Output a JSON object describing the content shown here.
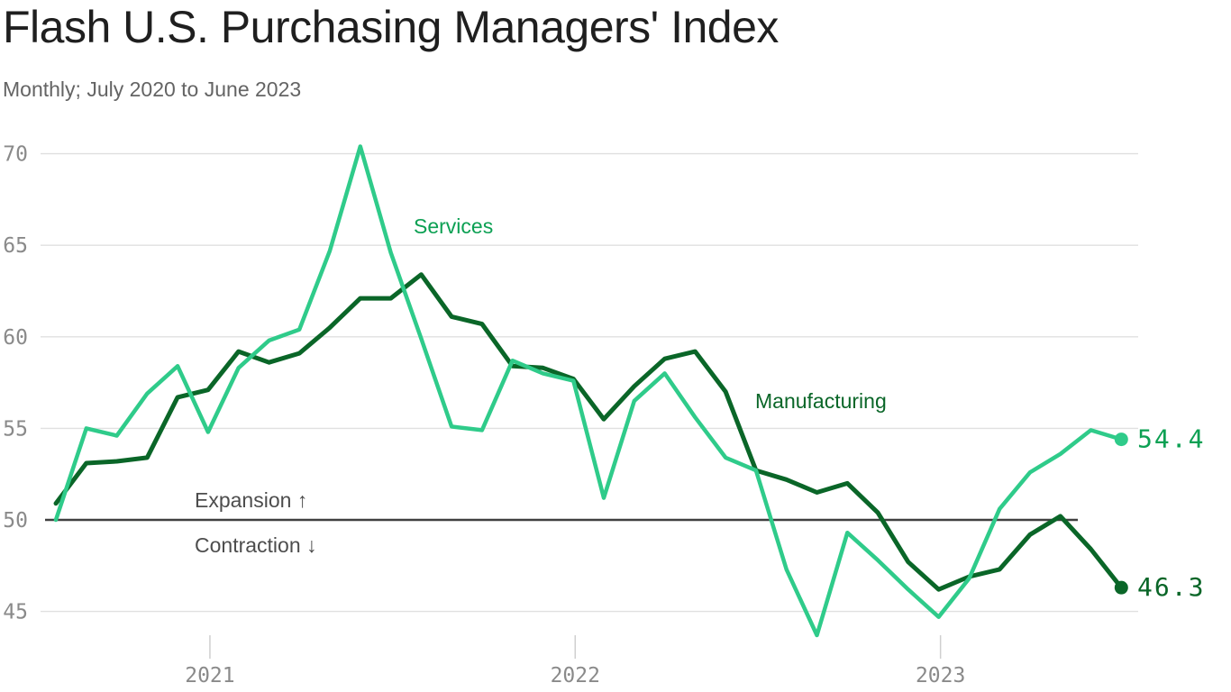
{
  "header": {
    "title": "Flash U.S. Purchasing Managers' Index",
    "subtitle": "Monthly; July 2020 to June 2023"
  },
  "chart_data": {
    "type": "line",
    "title": "Flash U.S. Purchasing Managers' Index",
    "subtitle": "Monthly; July 2020 to June 2023",
    "x": [
      "Jul 2020",
      "Aug 2020",
      "Sep 2020",
      "Oct 2020",
      "Nov 2020",
      "Dec 2020",
      "Jan 2021",
      "Feb 2021",
      "Mar 2021",
      "Apr 2021",
      "May 2021",
      "Jun 2021",
      "Jul 2021",
      "Aug 2021",
      "Sep 2021",
      "Oct 2021",
      "Nov 2021",
      "Dec 2021",
      "Jan 2022",
      "Feb 2022",
      "Mar 2022",
      "Apr 2022",
      "May 2022",
      "Jun 2022",
      "Jul 2022",
      "Aug 2022",
      "Sep 2022",
      "Oct 2022",
      "Nov 2022",
      "Dec 2022",
      "Jan 2023",
      "Feb 2023",
      "Mar 2023",
      "Apr 2023",
      "May 2023",
      "Jun 2023"
    ],
    "x_ticks": [
      "2021",
      "2022",
      "2023"
    ],
    "y_ticks": [
      45,
      50,
      55,
      60,
      65,
      70
    ],
    "ylim": [
      43.5,
      71
    ],
    "grid": true,
    "legend_position": "inline-annotations",
    "baseline": {
      "value": 50,
      "above_label": "Expansion ↑",
      "below_label": "Contraction ↓"
    },
    "series": [
      {
        "name": "Services",
        "line_color": "#2FCB8A",
        "text_color": "#0CA053",
        "end_label": "54.4",
        "values": [
          50.0,
          55.0,
          54.6,
          56.9,
          58.4,
          54.8,
          58.3,
          59.8,
          60.4,
          64.7,
          70.4,
          64.6,
          59.9,
          55.1,
          54.9,
          58.7,
          58.0,
          57.6,
          51.2,
          56.5,
          58.0,
          55.6,
          53.4,
          52.7,
          47.3,
          43.7,
          49.3,
          47.8,
          46.2,
          44.7,
          46.8,
          50.6,
          52.6,
          53.6,
          54.9,
          54.4
        ]
      },
      {
        "name": "Manufacturing",
        "line_color": "#0A6628",
        "text_color": "#0A6628",
        "end_label": "46.3",
        "values": [
          50.9,
          53.1,
          53.2,
          53.4,
          56.7,
          57.1,
          59.2,
          58.6,
          59.1,
          60.5,
          62.1,
          62.1,
          63.4,
          61.1,
          60.7,
          58.4,
          58.3,
          57.7,
          55.5,
          57.3,
          58.8,
          59.2,
          57.0,
          52.7,
          52.2,
          51.5,
          52.0,
          50.4,
          47.7,
          46.2,
          46.9,
          47.3,
          49.2,
          50.2,
          48.4,
          46.3
        ]
      }
    ],
    "style": {
      "background": "#FFFFFF",
      "grid_color": "#E0E0E0",
      "axis_text_color": "#8A8A8A",
      "tick_color": "#CFCFCF",
      "baseline_color": "#404040",
      "annotation_color": "#4D4D4D",
      "title_color": "#1F1F1F",
      "subtitle_color": "#646464"
    }
  }
}
